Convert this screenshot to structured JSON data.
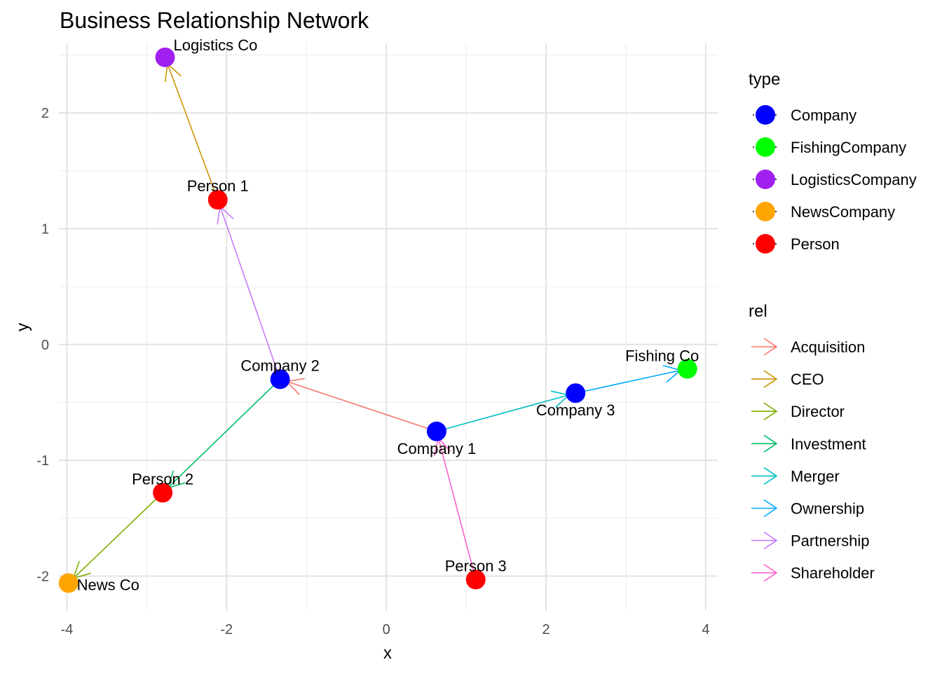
{
  "chart_data": {
    "type": "scatter",
    "subtype": "network-graph",
    "title": "Business Relationship Network",
    "xlabel": "x",
    "ylabel": "y",
    "xlim": [
      -4.1,
      4.15
    ],
    "ylim": [
      -2.3,
      2.6
    ],
    "x_ticks": [
      -4,
      -2,
      0,
      2,
      4
    ],
    "y_ticks": [
      -2,
      -1,
      0,
      1,
      2
    ],
    "x_tick_labels": [
      "-4",
      "-2",
      "0",
      "2",
      "4"
    ],
    "y_tick_labels": [
      "-2",
      "-1",
      "0",
      "1",
      "2"
    ],
    "grid": true,
    "legend_position": "right",
    "node_types": [
      {
        "name": "Company",
        "color": "#0000FF"
      },
      {
        "name": "FishingCompany",
        "color": "#00FF00"
      },
      {
        "name": "LogisticsCompany",
        "color": "#A020F0"
      },
      {
        "name": "NewsCompany",
        "color": "#FFA500"
      },
      {
        "name": "Person",
        "color": "#FF0000"
      }
    ],
    "relations": [
      {
        "name": "Acquisition",
        "color": "#F8766D"
      },
      {
        "name": "CEO",
        "color": "#CD9600"
      },
      {
        "name": "Director",
        "color": "#7CAE00"
      },
      {
        "name": "Investment",
        "color": "#00BE67"
      },
      {
        "name": "Merger",
        "color": "#00BFC4"
      },
      {
        "name": "Ownership",
        "color": "#00A9FF"
      },
      {
        "name": "Partnership",
        "color": "#C77CFF"
      },
      {
        "name": "Shareholder",
        "color": "#FF61CC"
      }
    ],
    "nodes": [
      {
        "id": "company1",
        "label": "Company 1",
        "type": "Company",
        "x": 0.63,
        "y": -0.75,
        "label_pos": "below"
      },
      {
        "id": "company2",
        "label": "Company 2",
        "type": "Company",
        "x": -1.33,
        "y": -0.3,
        "label_pos": "above"
      },
      {
        "id": "company3",
        "label": "Company 3",
        "type": "Company",
        "x": 2.37,
        "y": -0.42,
        "label_pos": "below"
      },
      {
        "id": "person1",
        "label": "Person 1",
        "type": "Person",
        "x": -2.11,
        "y": 1.25,
        "label_pos": "above"
      },
      {
        "id": "person2",
        "label": "Person 2",
        "type": "Person",
        "x": -2.8,
        "y": -1.28,
        "label_pos": "above"
      },
      {
        "id": "person3",
        "label": "Person 3",
        "type": "Person",
        "x": 1.12,
        "y": -2.03,
        "label_pos": "above"
      },
      {
        "id": "logistics",
        "label": "Logistics Co",
        "type": "LogisticsCompany",
        "x": -2.77,
        "y": 2.48,
        "label_pos": "above-right"
      },
      {
        "id": "fishing",
        "label": "Fishing Co",
        "type": "FishingCompany",
        "x": 3.77,
        "y": -0.21,
        "label_pos": "above-left"
      },
      {
        "id": "news",
        "label": "News Co",
        "type": "NewsCompany",
        "x": -3.98,
        "y": -2.06,
        "label_pos": "right"
      }
    ],
    "edges": [
      {
        "from": "company1",
        "to": "company2",
        "rel": "Acquisition"
      },
      {
        "from": "person1",
        "to": "logistics",
        "rel": "CEO"
      },
      {
        "from": "person2",
        "to": "news",
        "rel": "Director"
      },
      {
        "from": "company2",
        "to": "person2",
        "rel": "Investment"
      },
      {
        "from": "company1",
        "to": "company3",
        "rel": "Merger"
      },
      {
        "from": "company3",
        "to": "fishing",
        "rel": "Ownership"
      },
      {
        "from": "company2",
        "to": "person1",
        "rel": "Partnership"
      },
      {
        "from": "person3",
        "to": "company1",
        "rel": "Shareholder"
      }
    ]
  },
  "legend": {
    "type_title": "type",
    "rel_title": "rel"
  }
}
